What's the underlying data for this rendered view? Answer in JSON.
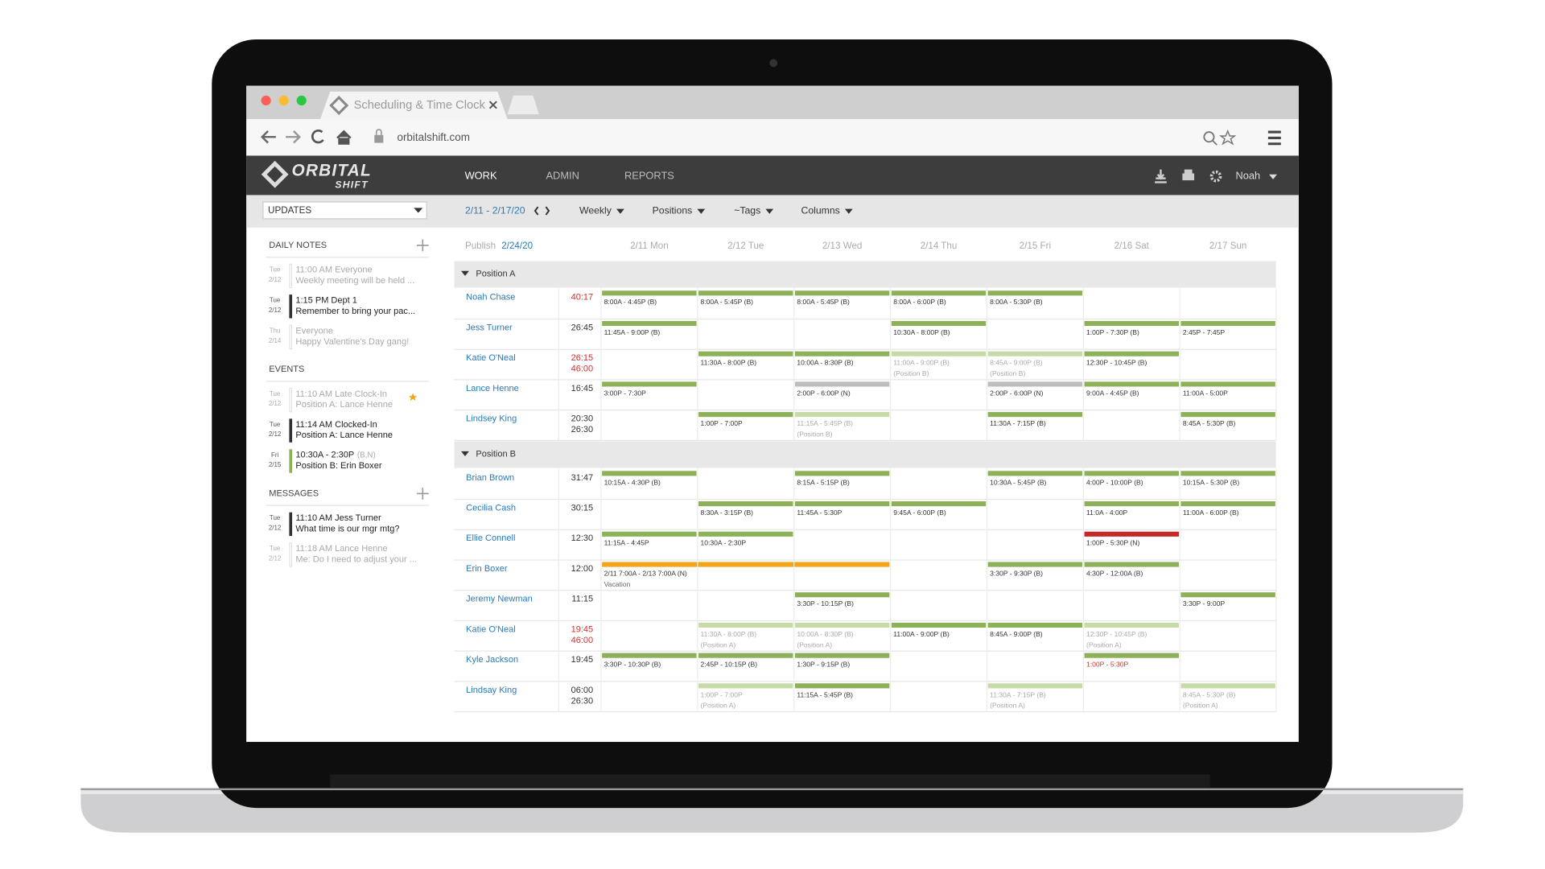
{
  "browser": {
    "tab_title": "Scheduling & Time Clock",
    "url": "orbitalshift.com"
  },
  "app": {
    "logo": [
      "ORBITAL",
      "SHIFT"
    ],
    "nav": [
      "WORK",
      "ADMIN",
      "REPORTS"
    ],
    "user": "Noah"
  },
  "toolbar": {
    "date_range": "2/11 - 2/17/20",
    "menus": [
      "Weekly",
      "Positions",
      "~Tags",
      "Columns"
    ]
  },
  "sidebar": {
    "dropdown": "UPDATES",
    "sections": [
      {
        "title": "DAILY NOTES",
        "add": true,
        "items": [
          {
            "day": "Tue",
            "date": "2/12",
            "title": "11:00 AM Everyone",
            "text": "Weekly meeting will be held ...",
            "faded": true
          },
          {
            "day": "Tue",
            "date": "2/12",
            "title": "1:15 PM Dept 1",
            "text": "Remember to bring your pac...",
            "marker": "#333333"
          },
          {
            "day": "Thu",
            "date": "2/14",
            "title": "Everyone",
            "text": "Happy Valentine's Day gang!",
            "faded": true
          }
        ]
      },
      {
        "title": "EVENTS",
        "add": false,
        "items": [
          {
            "day": "Tue",
            "date": "2/12",
            "title": "11:10 AM Late Clock-In",
            "text": "Position A: Lance Henne",
            "faded": true,
            "flag": true
          },
          {
            "day": "Tue",
            "date": "2/12",
            "title": "11:14 AM Clocked-In",
            "text": "Position A: Lance Henne",
            "marker": "#333333"
          },
          {
            "day": "Fri",
            "date": "2/15",
            "title": "10:30A - 2:30P",
            "tag": "(B,N)",
            "text": "Position B: Erin Boxer",
            "marker": "#8db158"
          }
        ]
      },
      {
        "title": "MESSAGES",
        "add": true,
        "items": [
          {
            "day": "Tue",
            "date": "2/12",
            "title": "11:10 AM Jess Turner",
            "text": "What time is our mgr mtg?",
            "marker": "#333333"
          },
          {
            "day": "Tue",
            "date": "2/12",
            "title": "11:18 AM Lance Henne",
            "text": "Me: Do I need to adjust your ...",
            "faded": true
          }
        ]
      }
    ]
  },
  "schedule": {
    "publish_label": "Publish",
    "publish_date": "2/24/20",
    "days": [
      "2/11 Mon",
      "2/12 Tue",
      "2/13 Wed",
      "2/14 Thu",
      "2/15 Fri",
      "2/16 Sat",
      "2/17 Sun"
    ],
    "groups": [
      {
        "name": "Position A",
        "rows": [
          {
            "name": "Noah Chase",
            "hours": [
              "40:17"
            ],
            "hours_color": "#d0312d",
            "shifts": [
              {
                "time": "8:00A - 4:45P (B)",
                "color": "#8db158"
              },
              {
                "time": "8:00A - 5:45P (B)",
                "color": "#8db158"
              },
              {
                "time": "8:00A - 5:45P (B)",
                "color": "#8db158"
              },
              {
                "time": "8:00A - 6:00P (B)",
                "color": "#8db158"
              },
              {
                "time": "8:00A - 5:30P (B)",
                "color": "#8db158"
              },
              null,
              null
            ]
          },
          {
            "name": "Jess Turner",
            "hours": [
              "26:45"
            ],
            "shifts": [
              {
                "time": "11:45A - 9:00P (B)",
                "color": "#8db158"
              },
              null,
              null,
              {
                "time": "10:30A - 8:00P (B)",
                "color": "#8db158"
              },
              null,
              {
                "time": "1:00P - 7:30P (B)",
                "color": "#8db158"
              },
              {
                "time": "2:45P - 7:45P",
                "color": "#8db158"
              }
            ]
          },
          {
            "name": "Katie O'Neal",
            "hours": [
              "26:15",
              "46:00"
            ],
            "hours_color": "#d0312d",
            "shifts": [
              null,
              {
                "time": "11:30A - 8:00P (B)",
                "color": "#8db158"
              },
              {
                "time": "10:00A - 8:30P (B)",
                "color": "#8db158"
              },
              {
                "time": "11:00A - 9:00P (B)",
                "note": "(Position B)",
                "color": "#c7dba8",
                "faded": true
              },
              {
                "time": "8:45A - 9:00P (B)",
                "note": "(Position B)",
                "color": "#c7dba8",
                "faded": true
              },
              {
                "time": "12:30P - 10:45P (B)",
                "color": "#8db158"
              },
              null
            ]
          },
          {
            "name": "Lance Henne",
            "hours": [
              "16:45"
            ],
            "shifts": [
              {
                "time": "3:00P - 7:30P",
                "color": "#8db158"
              },
              null,
              {
                "time": "2:00P - 6:00P (N)",
                "color": "#bdbdbd"
              },
              null,
              {
                "time": "2:00P - 6:00P (N)",
                "color": "#bdbdbd"
              },
              {
                "time": "9:00A - 4:45P (B)",
                "color": "#8db158"
              },
              {
                "time": "11:00A - 5:00P",
                "color": "#8db158"
              }
            ]
          },
          {
            "name": "Lindsey King",
            "hours": [
              "20:30",
              "26:30"
            ],
            "shifts": [
              null,
              {
                "time": "1:00P - 7:00P",
                "color": "#8db158"
              },
              {
                "time": "11:15A - 5:45P (B)",
                "note": "(Position B)",
                "color": "#c7dba8",
                "faded": true
              },
              null,
              {
                "time": "11:30A - 7:15P (B)",
                "color": "#8db158"
              },
              null,
              {
                "time": "8:45A - 5:30P (B)",
                "color": "#8db158"
              }
            ]
          }
        ]
      },
      {
        "name": "Position B",
        "rows": [
          {
            "name": "Brian Brown",
            "hours": [
              "31:47"
            ],
            "shifts": [
              {
                "time": "10:15A - 4:30P (B)",
                "color": "#8db158"
              },
              null,
              {
                "time": "8:15A - 5:15P (B)",
                "color": "#8db158"
              },
              null,
              {
                "time": "10:30A - 5:45P (B)",
                "color": "#8db158"
              },
              {
                "time": "4:00P - 10:00P (B)",
                "color": "#8db158"
              },
              {
                "time": "10:15A - 5:30P (B)",
                "color": "#8db158"
              }
            ]
          },
          {
            "name": "Cecilia Cash",
            "hours": [
              "30:15"
            ],
            "shifts": [
              null,
              {
                "time": "8:30A - 3:15P (B)",
                "color": "#8db158"
              },
              {
                "time": "11:45A - 5:30P",
                "color": "#8db158"
              },
              {
                "time": "9:45A - 6:00P (B)",
                "color": "#8db158"
              },
              null,
              {
                "time": "11:0A - 4:00P",
                "color": "#8db158"
              },
              {
                "time": "11:00A - 6:00P (B)",
                "color": "#8db158"
              }
            ]
          },
          {
            "name": "Ellie Connell",
            "hours": [
              "12:30"
            ],
            "shifts": [
              {
                "time": "11:15A - 4:45P",
                "color": "#8db158"
              },
              {
                "time": "10:30A - 2:30P",
                "color": "#8db158"
              },
              null,
              null,
              null,
              {
                "time": "1:00P - 5:30P (N)",
                "color": "#c62828"
              },
              null
            ]
          },
          {
            "name": "Erin Boxer",
            "hours": [
              "12:00"
            ],
            "shifts": [
              {
                "time": "2/11 7:00A - 2/13 7:00A (N)",
                "note": "Vacation",
                "color": "#f2a516",
                "span": 3
              },
              null,
              null,
              null,
              {
                "time": "3:30P - 9:30P (B)",
                "color": "#8db158"
              },
              {
                "time": "4:30P - 12:00A (B)",
                "color": "#8db158"
              },
              null
            ]
          },
          {
            "name": "Jeremy Newman",
            "hours": [
              "11:15"
            ],
            "shifts": [
              null,
              null,
              {
                "time": "3:30P - 10:15P (B)",
                "color": "#8db158"
              },
              null,
              null,
              null,
              {
                "time": "3:30P - 9:00P",
                "color": "#8db158"
              }
            ]
          },
          {
            "name": "Katie O'Neal",
            "hours": [
              "19:45",
              "46:00"
            ],
            "hours_color": "#d0312d",
            "shifts": [
              null,
              {
                "time": "11:30A - 8:00P (B)",
                "note": "(Position A)",
                "color": "#c7dba8",
                "faded": true
              },
              {
                "time": "10:00A - 8:30P (B)",
                "note": "(Position A)",
                "color": "#c7dba8",
                "faded": true
              },
              {
                "time": "11:00A - 9:00P (B)",
                "color": "#8db158"
              },
              {
                "time": "8:45A - 9:00P (B)",
                "color": "#8db158"
              },
              {
                "time": "12:30P - 10:45P (B)",
                "note": "(Position A)",
                "color": "#c7dba8",
                "faded": true
              },
              null
            ]
          },
          {
            "name": "Kyle Jackson",
            "hours": [
              "19:45"
            ],
            "shifts": [
              {
                "time": "3:30P - 10:30P (B)",
                "color": "#8db158"
              },
              {
                "time": "2:45P - 10:15P (B)",
                "color": "#8db158"
              },
              {
                "time": "1:30P - 9:15P (B)",
                "color": "#8db158"
              },
              null,
              null,
              {
                "time": "1:00P - 5:30P",
                "color": "#8db158",
                "text_color": "#d0312d"
              },
              null
            ]
          },
          {
            "name": "Lindsay King",
            "hours": [
              "06:00",
              "26:30"
            ],
            "shifts": [
              null,
              {
                "time": "1:00P - 7:00P",
                "note": "(Position A)",
                "color": "#c7dba8",
                "faded": true
              },
              {
                "time": "11:15A - 5:45P (B)",
                "color": "#8db158"
              },
              null,
              {
                "time": "11:30A - 7:15P (B)",
                "note": "(Position A)",
                "color": "#c7dba8",
                "faded": true
              },
              null,
              {
                "time": "8:45A - 5:30P (B)",
                "note": "(Position A)",
                "color": "#c7dba8",
                "faded": true
              }
            ]
          }
        ]
      }
    ]
  }
}
